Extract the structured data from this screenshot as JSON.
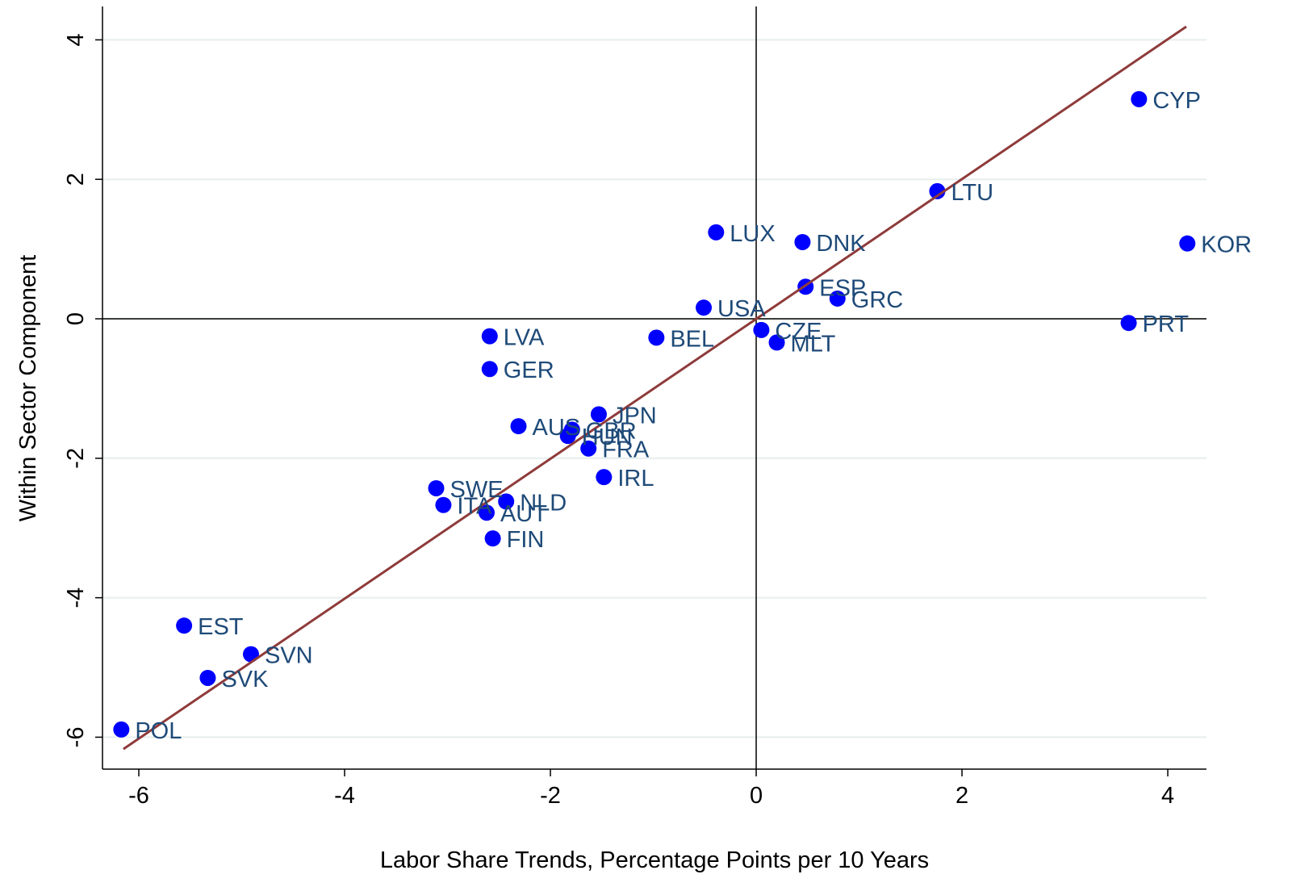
{
  "chart_data": {
    "type": "scatter",
    "x_label": "Labor Share Trends, Percentage Points per 10 Years",
    "y_label": "Within Sector Component",
    "labels": [
      "CYP",
      "LTU",
      "LUX",
      "DNK",
      "KOR",
      "ESP",
      "GRC",
      "USA",
      "PRT",
      "CZE",
      "MLT",
      "BEL",
      "LVA",
      "GER",
      "JPN",
      "AUS",
      "GBR",
      "HUN",
      "FRA",
      "IRL",
      "SWE",
      "NLD",
      "ITA",
      "AUT",
      "FIN",
      "EST",
      "SVN",
      "SVK",
      "POL"
    ],
    "x": [
      3.72,
      1.76,
      -0.39,
      0.45,
      4.19,
      0.48,
      0.79,
      -0.51,
      3.62,
      0.05,
      0.2,
      -0.97,
      -2.59,
      -2.59,
      -1.53,
      -2.31,
      -1.79,
      -1.83,
      -1.63,
      -1.48,
      -3.11,
      -2.43,
      -3.04,
      -2.62,
      -2.56,
      -5.56,
      -4.91,
      -5.33,
      -6.17
    ],
    "y": [
      3.15,
      1.83,
      1.24,
      1.1,
      1.08,
      0.46,
      0.29,
      0.16,
      -0.06,
      -0.16,
      -0.34,
      -0.27,
      -0.25,
      -0.72,
      -1.37,
      -1.54,
      -1.59,
      -1.68,
      -1.86,
      -2.27,
      -2.43,
      -2.62,
      -2.67,
      -2.78,
      -3.15,
      -4.4,
      -4.81,
      -5.15,
      -5.89
    ],
    "color": "#0000ff",
    "label_color": "#1e4a78",
    "fit": {
      "x": [
        -6.15,
        4.18
      ],
      "y": [
        -6.17,
        4.19
      ],
      "color": "#8f3b3b"
    },
    "xlim": [
      -6.353,
      4.376
    ],
    "ylim": [
      -6.458,
      4.479
    ],
    "xticks": [
      -6,
      -4,
      -2,
      0,
      2,
      4
    ],
    "yticks": [
      -6,
      -4,
      -2,
      0,
      2,
      4
    ],
    "grid": true
  }
}
